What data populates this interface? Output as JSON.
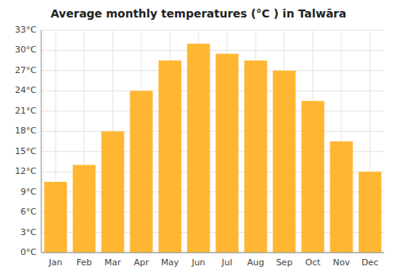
{
  "chart_data": {
    "type": "bar",
    "title": "Average monthly temperatures (°C ) in Talwāra",
    "categories": [
      "Jan",
      "Feb",
      "Mar",
      "Apr",
      "May",
      "Jun",
      "Jul",
      "Aug",
      "Sep",
      "Oct",
      "Nov",
      "Dec"
    ],
    "values": [
      10.5,
      13.0,
      18.0,
      24.0,
      28.5,
      31.0,
      29.5,
      28.5,
      27.0,
      22.5,
      16.5,
      12.0
    ],
    "color": "#FFB733",
    "ylim": [
      0,
      33
    ],
    "yticks": [
      {
        "value": 0,
        "label": "0°C"
      },
      {
        "value": 3,
        "label": "3°C"
      },
      {
        "value": 6,
        "label": "6°C"
      },
      {
        "value": 9,
        "label": "9°C"
      },
      {
        "value": 12,
        "label": "12°C"
      },
      {
        "value": 15,
        "label": "15°C"
      },
      {
        "value": 18,
        "label": "18°C"
      },
      {
        "value": 21,
        "label": "21°C"
      },
      {
        "value": 24,
        "label": "24°C"
      },
      {
        "value": 27,
        "label": "27°C"
      },
      {
        "value": 30,
        "label": "30°C"
      },
      {
        "value": 33,
        "label": "33°C"
      }
    ],
    "grid": true
  }
}
